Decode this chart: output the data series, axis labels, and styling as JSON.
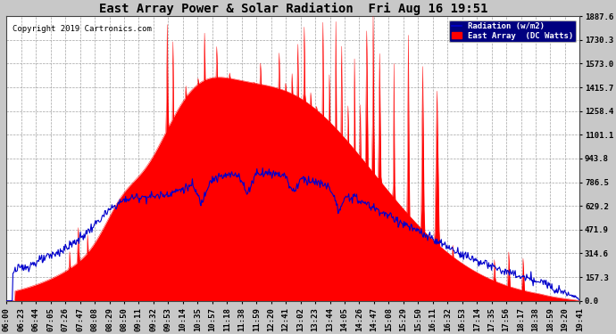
{
  "title": "East Array Power & Solar Radiation  Fri Aug 16 19:51",
  "copyright": "Copyright 2019 Cartronics.com",
  "legend_radiation": "Radiation (w/m2)",
  "legend_east": "East Array  (DC Watts)",
  "yticks": [
    0.0,
    157.3,
    314.6,
    471.9,
    629.2,
    786.5,
    943.8,
    1101.1,
    1258.4,
    1415.7,
    1573.0,
    1730.3,
    1887.6
  ],
  "ymax": 1887.6,
  "ymin": 0.0,
  "background_color": "#c8c8c8",
  "plot_background": "#ffffff",
  "red_color": "#ff0000",
  "blue_color": "#0000cc",
  "title_fontsize": 10,
  "tick_fontsize": 6.5,
  "grid_color": "#999999",
  "xtick_labels": [
    "06:00",
    "06:23",
    "06:44",
    "07:05",
    "07:26",
    "07:47",
    "08:08",
    "08:29",
    "08:50",
    "09:11",
    "09:32",
    "09:53",
    "10:14",
    "10:35",
    "10:57",
    "11:18",
    "11:38",
    "11:59",
    "12:20",
    "12:41",
    "13:02",
    "13:23",
    "13:44",
    "14:05",
    "14:26",
    "14:47",
    "15:08",
    "15:29",
    "15:50",
    "16:11",
    "16:32",
    "16:53",
    "17:14",
    "17:35",
    "17:56",
    "18:17",
    "18:38",
    "18:59",
    "19:20",
    "19:41"
  ],
  "n_points": 800
}
